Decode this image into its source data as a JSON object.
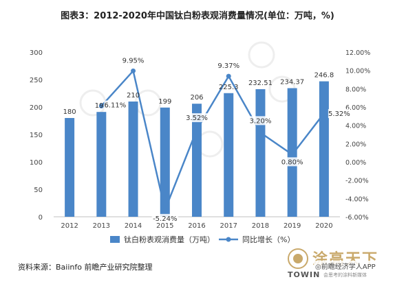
{
  "title": "图表3：2012-2020年中国钛白粉表观消费量情况(单位：万吨，%)",
  "source": "资料来源：Baiinfo 前瞻产业研究院整理",
  "watermark": {
    "brand_cn": "涂高天下",
    "app": "◎前瞻经济学人APP",
    "towin": "TOWIN",
    "slogan": "会思考的涂料新媒体"
  },
  "colors": {
    "bar": "#4a86c8",
    "line": "#4a86c8",
    "axis_text": "#444444",
    "grid": "#e8e8e8"
  },
  "chart_data": {
    "type": "bar",
    "categories": [
      "2012",
      "2013",
      "2014",
      "2015",
      "2016",
      "2017",
      "2018",
      "2019",
      "2020"
    ],
    "series": [
      {
        "name": "钛白粉表观消费量（万吨）",
        "type": "bar",
        "axis": "left",
        "values": [
          180,
          191,
          210,
          199,
          206,
          225.3,
          232.51,
          234.37,
          246.8
        ],
        "labels": [
          "180",
          "191",
          "210",
          "199",
          "206",
          "225.3",
          "232.51",
          "234.37",
          "246.8"
        ]
      },
      {
        "name": "同比增长（%）",
        "type": "line",
        "axis": "right",
        "values": [
          null,
          6.11,
          9.95,
          -5.24,
          3.52,
          9.37,
          3.2,
          0.8,
          5.32
        ],
        "labels": [
          null,
          "6.11%",
          "9.95%",
          "-5.24%",
          "3.52%",
          "9.37%",
          "3.20%",
          "0.80%",
          "5.32%"
        ]
      }
    ],
    "y_left": {
      "min": 0,
      "max": 300,
      "ticks": [
        "0",
        "50",
        "100",
        "150",
        "200",
        "250",
        "300"
      ]
    },
    "y_right": {
      "min": -6,
      "max": 12,
      "ticks": [
        "-6.00%",
        "-4.00%",
        "-2.00%",
        "0.00%",
        "2.00%",
        "4.00%",
        "6.00%",
        "8.00%",
        "10.00%",
        "12.00%"
      ]
    },
    "grid": false,
    "legend": {
      "position": "bottom"
    }
  }
}
